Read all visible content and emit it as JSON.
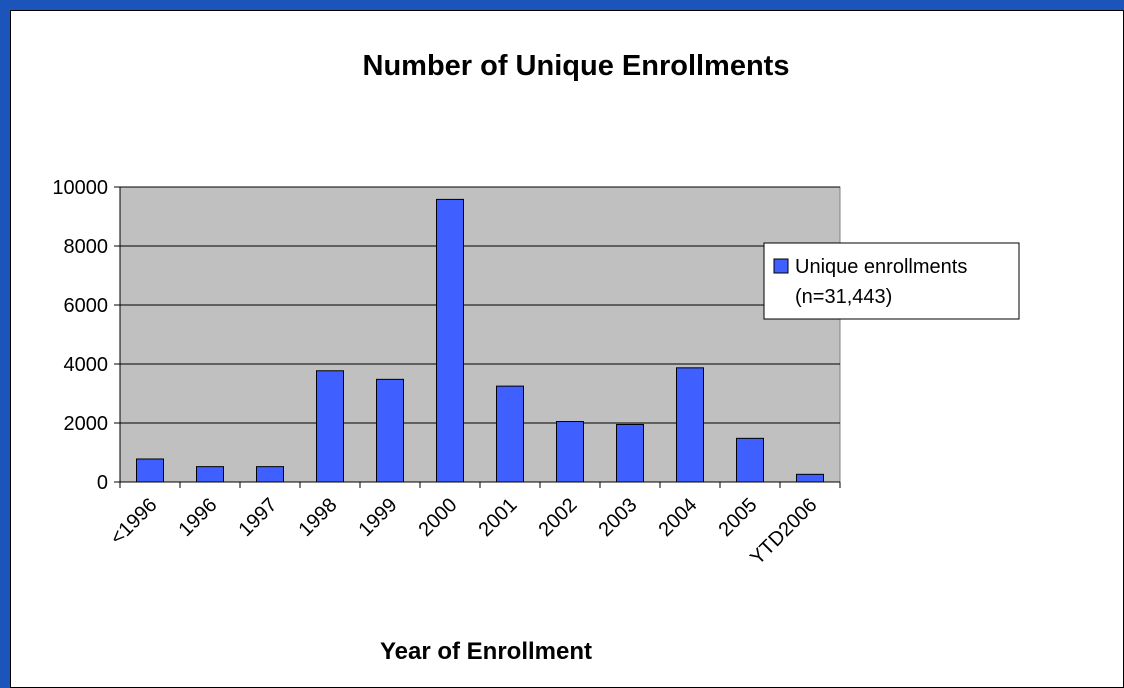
{
  "chart_data": {
    "type": "bar",
    "title": "Number of Unique Enrollments",
    "xlabel": "Year of Enrollment",
    "ylabel": "",
    "categories": [
      "<1996",
      "1996",
      "1997",
      "1998",
      "1999",
      "2000",
      "2001",
      "2002",
      "2003",
      "2004",
      "2005",
      "YTD2006"
    ],
    "series": [
      {
        "name": "Unique enrollments (n=31,443)",
        "legend_lines": [
          "Unique enrollments",
          "(n=31,443)"
        ],
        "values": [
          780,
          520,
          520,
          3770,
          3480,
          9580,
          3250,
          2050,
          1950,
          3870,
          1480,
          260
        ]
      }
    ],
    "ylim": [
      0,
      10000
    ],
    "yticks": [
      0,
      2000,
      4000,
      6000,
      8000,
      10000
    ],
    "grid": true,
    "legend": "right",
    "colors": {
      "bar": "#3f5fff",
      "plot_bg": "#c0c0c0",
      "slide_bg": "#1c55b9"
    }
  }
}
